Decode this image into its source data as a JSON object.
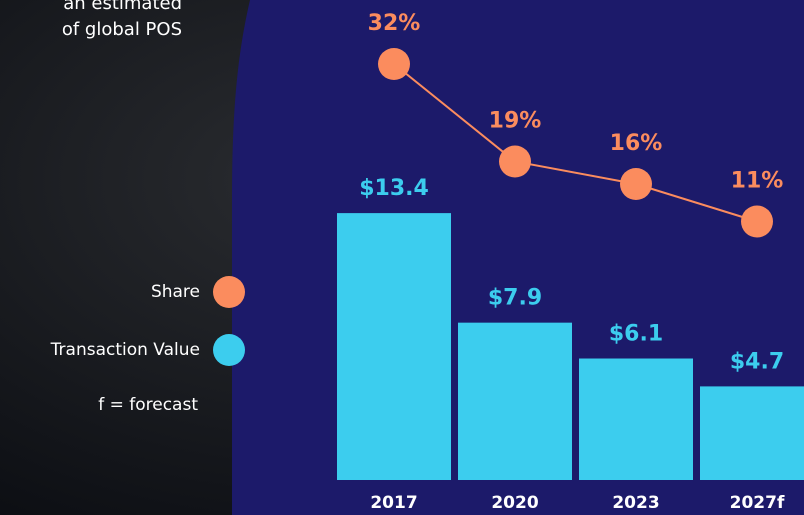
{
  "intro_lines": [
    "an estimated",
    "of global POS"
  ],
  "chart_data": {
    "type": "bar_line",
    "categories": [
      "2017",
      "2020",
      "2023",
      "2027f"
    ],
    "series": [
      {
        "name": "Transaction Value",
        "color": "#3ccdee",
        "values": [
          13.4,
          7.9,
          6.1,
          4.7
        ],
        "value_labels": [
          "$13.4",
          "$7.9",
          "$6.1",
          "$4.7"
        ]
      },
      {
        "name": "Share",
        "color": "#fb8c5e",
        "axis": "y2",
        "values": [
          32,
          19,
          16,
          11
        ],
        "value_labels": [
          "32%",
          "19%",
          "16%",
          "11%"
        ]
      }
    ],
    "ylim": [
      0,
      24
    ],
    "y2lim": [
      0,
      40
    ],
    "note": "f = forecast"
  }
}
